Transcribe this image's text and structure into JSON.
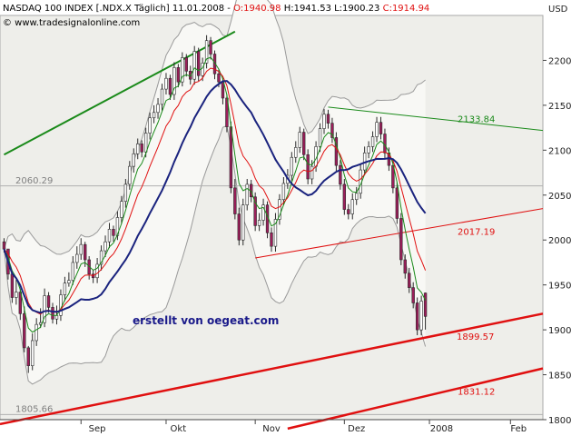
{
  "header": {
    "title": "NASDAQ 100 INDEX [.NDX.X  Täglich] 11.01.2008 - ",
    "o_label": "O:1940.98",
    "hl": " H:1941.53 L:1900.23 ",
    "c_label": "C:1914.94",
    "website": "© www.tradesignalonline.com"
  },
  "currency": "USD",
  "credit": "erstellt von oegeat.com",
  "colors": {
    "background": "#eeeeea",
    "bull": "#ffffff",
    "bear": "#9c1e5a",
    "candle_outline": "#2a2a2a",
    "ma_fast": "#1a8a1a",
    "ma_mid": "#e01010",
    "ma_slow": "#1a237e",
    "bollinger": "#9a9a9a",
    "trend_green": "#1a8a1a",
    "trend_red": "#e01010",
    "ohlc_open": "#e01010",
    "ohlc_close": "#e01010"
  },
  "chart_data": {
    "type": "candlestick",
    "ylim": [
      1800,
      2250
    ],
    "yticks": [
      1800,
      1850,
      1900,
      1950,
      2000,
      2050,
      2100,
      2150,
      2200
    ],
    "xlabels": [
      {
        "label": "Sep",
        "idx": 23
      },
      {
        "label": "Okt",
        "idx": 43
      },
      {
        "label": "Nov",
        "idx": 66
      },
      {
        "label": "Dez",
        "idx": 87
      },
      {
        "label": "2008",
        "idx": 108
      },
      {
        "label": "Feb",
        "idx": 127
      }
    ],
    "month_ticks": [
      19,
      40,
      62,
      84,
      105,
      125
    ],
    "x_range": [
      -1,
      133
    ],
    "closes": [
      1990,
      1962,
      1936,
      1942,
      1918,
      1880,
      1860,
      1888,
      1906,
      1908,
      1938,
      1925,
      1912,
      1916,
      1939,
      1952,
      1955,
      1975,
      1984,
      1995,
      1978,
      1962,
      1958,
      1973,
      1988,
      1998,
      2012,
      2005,
      2025,
      2043,
      2062,
      2082,
      2096,
      2107,
      2098,
      2119,
      2136,
      2142,
      2151,
      2168,
      2180,
      2162,
      2192,
      2176,
      2203,
      2188,
      2179,
      2210,
      2183,
      2197,
      2222,
      2207,
      2185,
      2176,
      2158,
      2126,
      2058,
      2029,
      2000,
      2039,
      2062,
      2048,
      2016,
      2022,
      2039,
      2008,
      1993,
      2023,
      2045,
      2063,
      2072,
      2092,
      2103,
      2120,
      2095,
      2068,
      2082,
      2104,
      2124,
      2140,
      2130,
      2114,
      2083,
      2062,
      2034,
      2029,
      2045,
      2052,
      2078,
      2097,
      2104,
      2115,
      2131,
      2118,
      2097,
      2083,
      2058,
      2024,
      1978,
      1963,
      1947,
      1930,
      1900,
      1932,
      1914.94
    ],
    "highs": [
      2002,
      1990,
      1960,
      1956,
      1946,
      1926,
      1882,
      1896,
      1913,
      1924,
      1946,
      1942,
      1930,
      1927,
      1945,
      1959,
      1964,
      1982,
      1993,
      2002,
      1998,
      1982,
      1967,
      1980,
      1994,
      2005,
      2019,
      2016,
      2032,
      2049,
      2068,
      2088,
      2102,
      2113,
      2111,
      2125,
      2142,
      2150,
      2158,
      2174,
      2186,
      2184,
      2198,
      2196,
      2209,
      2207,
      2194,
      2216,
      2214,
      2203,
      2228,
      2226,
      2211,
      2190,
      2180,
      2162,
      2132,
      2068,
      2036,
      2046,
      2068,
      2067,
      2053,
      2030,
      2046,
      2043,
      2014,
      2030,
      2051,
      2070,
      2079,
      2098,
      2110,
      2126,
      2124,
      2101,
      2089,
      2110,
      2130,
      2146,
      2145,
      2136,
      2120,
      2089,
      2068,
      2040,
      2052,
      2059,
      2085,
      2104,
      2110,
      2121,
      2137,
      2137,
      2124,
      2103,
      2089,
      2064,
      2030,
      1984,
      1969,
      1953,
      1936,
      1938,
      1941.53
    ],
    "lows": [
      1986,
      1956,
      1930,
      1928,
      1911,
      1875,
      1852,
      1855,
      1882,
      1902,
      1903,
      1919,
      1907,
      1906,
      1910,
      1932,
      1948,
      1950,
      1968,
      1978,
      1970,
      1956,
      1952,
      1952,
      1966,
      1981,
      1991,
      1998,
      2000,
      2018,
      2036,
      2056,
      2075,
      2090,
      2092,
      2092,
      2112,
      2130,
      2135,
      2144,
      2162,
      2156,
      2156,
      2170,
      2171,
      2182,
      2173,
      2173,
      2177,
      2177,
      2191,
      2201,
      2179,
      2170,
      2151,
      2120,
      2052,
      2023,
      1994,
      1994,
      2033,
      2042,
      2010,
      2010,
      2016,
      2002,
      1987,
      1987,
      2017,
      2039,
      2057,
      2066,
      2086,
      2097,
      2089,
      2062,
      2062,
      2076,
      2098,
      2118,
      2124,
      2108,
      2077,
      2056,
      2028,
      2023,
      2023,
      2039,
      2046,
      2072,
      2091,
      2098,
      2109,
      2112,
      2091,
      2077,
      2052,
      2018,
      1972,
      1957,
      1941,
      1924,
      1894,
      1894,
      1900.23
    ],
    "levels": [
      {
        "value": "2133.84",
        "color": "#1a8a1a"
      },
      {
        "value": "2060.29",
        "color": "#808080"
      },
      {
        "value": "2017.19",
        "color": "#e01010"
      },
      {
        "value": "1899.57",
        "color": "#e01010"
      },
      {
        "value": "1831.12",
        "color": "#e01010"
      },
      {
        "value": "1805.66",
        "color": "#808080"
      }
    ],
    "level_1805": 1805.66,
    "level_2060": 2060.29
  }
}
